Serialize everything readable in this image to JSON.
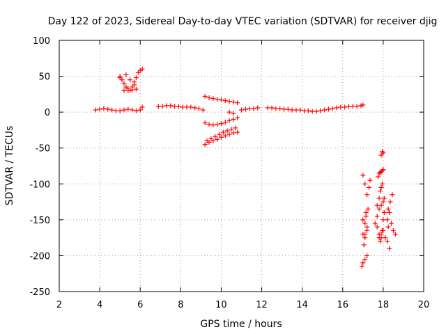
{
  "chart_data": {
    "type": "scatter",
    "title": "Day 122 of 2023, Sidereal Day-to-day VTEC variation (SDTVAR) for receiver djig",
    "xlabel": "GPS time / hours",
    "ylabel": "SDTVAR / TECUs",
    "xlim": [
      2,
      20
    ],
    "ylim": [
      -250,
      100
    ],
    "xticks": [
      2,
      4,
      6,
      8,
      10,
      12,
      14,
      16,
      18,
      20
    ],
    "yticks": [
      100,
      50,
      0,
      -50,
      -100,
      -150,
      -200,
      -250
    ],
    "grid": true,
    "marker": "+",
    "color": "#ff0000",
    "series": [
      {
        "name": "SDTVAR",
        "x": [
          3.8,
          4.0,
          4.2,
          4.4,
          4.6,
          4.8,
          5.0,
          5.2,
          5.4,
          5.6,
          5.8,
          6.0,
          6.1,
          5.0,
          5.1,
          5.2,
          5.3,
          5.4,
          5.5,
          5.6,
          5.7,
          5.8,
          5.9,
          6.0,
          6.1,
          5.2,
          5.4,
          5.6,
          5.8,
          5.0,
          5.3,
          5.5,
          5.7,
          6.9,
          7.1,
          7.3,
          7.5,
          7.7,
          7.9,
          8.1,
          8.3,
          8.5,
          8.7,
          8.9,
          9.1,
          9.2,
          9.4,
          9.6,
          9.8,
          10.0,
          10.2,
          10.4,
          10.6,
          10.8,
          9.2,
          9.4,
          9.6,
          9.8,
          10.0,
          10.2,
          10.4,
          10.6,
          10.8,
          9.2,
          9.4,
          9.6,
          9.8,
          10.0,
          10.2,
          10.4,
          10.6,
          10.8,
          9.3,
          9.5,
          9.7,
          9.9,
          10.1,
          10.3,
          10.5,
          10.7,
          10.4,
          10.6,
          11.0,
          11.2,
          11.4,
          11.6,
          11.8,
          12.3,
          12.5,
          12.7,
          12.9,
          13.1,
          13.3,
          13.5,
          13.7,
          13.9,
          14.1,
          14.3,
          14.5,
          14.7,
          14.9,
          15.1,
          15.3,
          15.5,
          15.7,
          15.9,
          16.1,
          16.3,
          16.5,
          16.7,
          16.9,
          17.0,
          17.0,
          17.1,
          17.2,
          17.3,
          17.35,
          17.0,
          17.1,
          17.2,
          17.0,
          17.1,
          17.2,
          17.0,
          17.1,
          17.2,
          16.95,
          17.05,
          17.15,
          17.25,
          17.1,
          17.15,
          17.75,
          17.8,
          17.85,
          17.9,
          17.95,
          18.0,
          17.8,
          17.9,
          18.0,
          18.05,
          17.7,
          17.8,
          17.9,
          18.0,
          17.8,
          17.85,
          17.9,
          17.95,
          18.0,
          18.05,
          17.9,
          17.95,
          18.0,
          17.85,
          17.9,
          17.95,
          17.7,
          17.8,
          18.2,
          18.25,
          18.3,
          18.4,
          18.5,
          18.6,
          18.3,
          18.2,
          18.1,
          18.25,
          18.35,
          18.45,
          17.6,
          17.7
        ],
        "y": [
          3,
          4,
          5,
          4,
          3,
          2,
          2,
          3,
          4,
          3,
          2,
          3,
          7,
          50,
          45,
          40,
          35,
          33,
          30,
          35,
          42,
          48,
          55,
          58,
          60,
          30,
          30,
          31,
          32,
          48,
          52,
          45,
          38,
          8,
          8,
          9,
          9,
          8,
          8,
          7,
          7,
          7,
          6,
          5,
          3,
          22,
          20,
          19,
          18,
          17,
          16,
          15,
          14,
          13,
          -15,
          -17,
          -18,
          -17,
          -16,
          -14,
          -12,
          -10,
          -8,
          -45,
          -42,
          -40,
          -38,
          -35,
          -33,
          -31,
          -29,
          -28,
          -40,
          -37,
          -34,
          -31,
          -28,
          -26,
          -24,
          -22,
          0,
          -2,
          3,
          4,
          5,
          5,
          6,
          6,
          6,
          5,
          5,
          4,
          4,
          3,
          3,
          3,
          2,
          2,
          1,
          1,
          2,
          3,
          4,
          5,
          6,
          7,
          7,
          8,
          8,
          8,
          9,
          10,
          -88,
          -100,
          -115,
          -105,
          -95,
          -150,
          -155,
          -160,
          -170,
          -175,
          -165,
          -210,
          -205,
          -200,
          -215,
          -185,
          -140,
          -135,
          -170,
          -145,
          -90,
          -85,
          -84,
          -83,
          -82,
          -80,
          -135,
          -130,
          -125,
          -120,
          -160,
          -170,
          -175,
          -165,
          -175,
          -180,
          -170,
          -165,
          -150,
          -140,
          -60,
          -55,
          -57,
          -110,
          -105,
          -100,
          -130,
          -120,
          -150,
          -160,
          -140,
          -155,
          -165,
          -170,
          -190,
          -180,
          -175,
          -135,
          -125,
          -115,
          -155,
          -145
        ]
      }
    ]
  }
}
